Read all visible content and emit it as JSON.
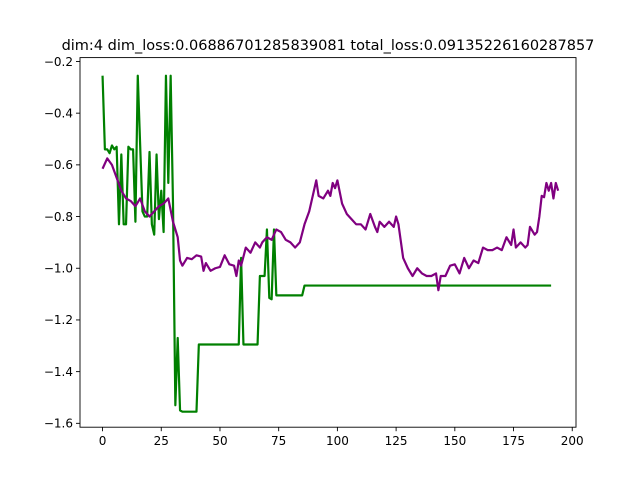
{
  "chart_data": {
    "type": "line",
    "title": "dim:4 dim_loss:0.06886701285839081 total_loss:0.09135226160287857",
    "xlabel": "",
    "ylabel": "",
    "xlim": [
      -9.6,
      201.6
    ],
    "ylim": [
      -1.615,
      -0.185
    ],
    "xticks": [
      0,
      25,
      50,
      75,
      100,
      125,
      150,
      175,
      200
    ],
    "yticks": [
      -1.6,
      -1.4,
      -1.2,
      -1.0,
      -0.8,
      -0.6,
      -0.4,
      -0.2
    ],
    "xtick_labels": [
      "0",
      "25",
      "50",
      "75",
      "100",
      "125",
      "150",
      "175",
      "200"
    ],
    "ytick_labels": [
      "−1.6",
      "−1.4",
      "−1.2",
      "−1.0",
      "−0.8",
      "−0.6",
      "−0.4",
      "−0.2"
    ],
    "grid": false,
    "series": [
      {
        "color": "#008000",
        "points": [
          [
            0,
            -0.255
          ],
          [
            1,
            -0.54
          ],
          [
            2,
            -0.54
          ],
          [
            3,
            -0.555
          ],
          [
            4,
            -0.525
          ],
          [
            5,
            -0.54
          ],
          [
            6,
            -0.53
          ],
          [
            7,
            -0.83
          ],
          [
            8,
            -0.56
          ],
          [
            9,
            -0.83
          ],
          [
            10,
            -0.83
          ],
          [
            11,
            -0.53
          ],
          [
            12,
            -0.54
          ],
          [
            13,
            -0.54
          ],
          [
            14,
            -0.82
          ],
          [
            15,
            -0.255
          ],
          [
            16,
            -0.52
          ],
          [
            17,
            -0.78
          ],
          [
            18,
            -0.8
          ],
          [
            19,
            -0.8
          ],
          [
            20,
            -0.55
          ],
          [
            21,
            -0.83
          ],
          [
            22,
            -0.87
          ],
          [
            23,
            -0.56
          ],
          [
            24,
            -0.81
          ],
          [
            25,
            -0.7
          ],
          [
            26,
            -0.86
          ],
          [
            27,
            -0.255
          ],
          [
            28,
            -0.67
          ],
          [
            29,
            -0.255
          ],
          [
            30,
            -0.75
          ],
          [
            31,
            -1.53
          ],
          [
            32,
            -1.27
          ],
          [
            33,
            -1.55
          ],
          [
            34,
            -1.555
          ],
          [
            40,
            -1.555
          ],
          [
            41,
            -1.295
          ],
          [
            58,
            -1.295
          ],
          [
            59,
            -0.96
          ],
          [
            60,
            -1.295
          ],
          [
            66,
            -1.295
          ],
          [
            67,
            -1.03
          ],
          [
            69,
            -1.03
          ],
          [
            70,
            -0.85
          ],
          [
            71,
            -1.115
          ],
          [
            72,
            -1.12
          ],
          [
            73,
            -0.85
          ],
          [
            74,
            -1.105
          ],
          [
            85,
            -1.105
          ],
          [
            86,
            -1.067
          ],
          [
            191,
            -1.067
          ]
        ]
      },
      {
        "color": "#800080",
        "points": [
          [
            0,
            -0.615
          ],
          [
            2,
            -0.575
          ],
          [
            4,
            -0.6
          ],
          [
            6,
            -0.65
          ],
          [
            8,
            -0.7
          ],
          [
            10,
            -0.73
          ],
          [
            12,
            -0.74
          ],
          [
            14,
            -0.76
          ],
          [
            16,
            -0.73
          ],
          [
            18,
            -0.78
          ],
          [
            20,
            -0.8
          ],
          [
            22,
            -0.78
          ],
          [
            24,
            -0.76
          ],
          [
            26,
            -0.75
          ],
          [
            28,
            -0.73
          ],
          [
            30,
            -0.82
          ],
          [
            32,
            -0.88
          ],
          [
            33,
            -0.97
          ],
          [
            34,
            -0.99
          ],
          [
            36,
            -0.96
          ],
          [
            38,
            -0.965
          ],
          [
            40,
            -0.95
          ],
          [
            42,
            -0.955
          ],
          [
            43,
            -1.01
          ],
          [
            44,
            -0.98
          ],
          [
            46,
            -1.01
          ],
          [
            48,
            -1.0
          ],
          [
            50,
            -0.995
          ],
          [
            52,
            -0.95
          ],
          [
            54,
            -0.985
          ],
          [
            56,
            -0.99
          ],
          [
            57,
            -1.03
          ],
          [
            58,
            -0.97
          ],
          [
            59,
            -0.99
          ],
          [
            61,
            -0.92
          ],
          [
            63,
            -0.94
          ],
          [
            65,
            -0.9
          ],
          [
            67,
            -0.92
          ],
          [
            68,
            -0.9
          ],
          [
            70,
            -0.88
          ],
          [
            72,
            -0.89
          ],
          [
            74,
            -0.85
          ],
          [
            76,
            -0.86
          ],
          [
            78,
            -0.89
          ],
          [
            80,
            -0.9
          ],
          [
            82,
            -0.92
          ],
          [
            84,
            -0.9
          ],
          [
            86,
            -0.83
          ],
          [
            88,
            -0.78
          ],
          [
            90,
            -0.7
          ],
          [
            91,
            -0.66
          ],
          [
            92,
            -0.72
          ],
          [
            94,
            -0.73
          ],
          [
            96,
            -0.7
          ],
          [
            97,
            -0.72
          ],
          [
            98,
            -0.67
          ],
          [
            99,
            -0.69
          ],
          [
            100,
            -0.66
          ],
          [
            102,
            -0.75
          ],
          [
            104,
            -0.79
          ],
          [
            106,
            -0.81
          ],
          [
            108,
            -0.83
          ],
          [
            110,
            -0.83
          ],
          [
            112,
            -0.85
          ],
          [
            114,
            -0.79
          ],
          [
            116,
            -0.84
          ],
          [
            117,
            -0.86
          ],
          [
            118,
            -0.82
          ],
          [
            120,
            -0.84
          ],
          [
            122,
            -0.82
          ],
          [
            124,
            -0.84
          ],
          [
            125,
            -0.8
          ],
          [
            126,
            -0.83
          ],
          [
            128,
            -0.96
          ],
          [
            130,
            -1.0
          ],
          [
            132,
            -1.03
          ],
          [
            134,
            -1.0
          ],
          [
            136,
            -1.02
          ],
          [
            138,
            -1.03
          ],
          [
            140,
            -1.03
          ],
          [
            142,
            -1.02
          ],
          [
            143,
            -1.085
          ],
          [
            144,
            -1.03
          ],
          [
            146,
            -1.03
          ],
          [
            148,
            -0.99
          ],
          [
            150,
            -0.985
          ],
          [
            152,
            -1.02
          ],
          [
            154,
            -0.96
          ],
          [
            156,
            -1.0
          ],
          [
            158,
            -0.97
          ],
          [
            160,
            -0.98
          ],
          [
            162,
            -0.92
          ],
          [
            164,
            -0.93
          ],
          [
            166,
            -0.93
          ],
          [
            168,
            -0.92
          ],
          [
            170,
            -0.93
          ],
          [
            172,
            -0.88
          ],
          [
            174,
            -0.91
          ],
          [
            175,
            -0.85
          ],
          [
            176,
            -0.92
          ],
          [
            178,
            -0.9
          ],
          [
            180,
            -0.92
          ],
          [
            181,
            -0.91
          ],
          [
            182,
            -0.84
          ],
          [
            184,
            -0.87
          ],
          [
            185,
            -0.86
          ],
          [
            186,
            -0.8
          ],
          [
            187,
            -0.72
          ],
          [
            188,
            -0.725
          ],
          [
            189,
            -0.67
          ],
          [
            190,
            -0.7
          ],
          [
            191,
            -0.67
          ],
          [
            192,
            -0.73
          ],
          [
            193,
            -0.67
          ],
          [
            194,
            -0.7
          ]
        ]
      }
    ]
  }
}
